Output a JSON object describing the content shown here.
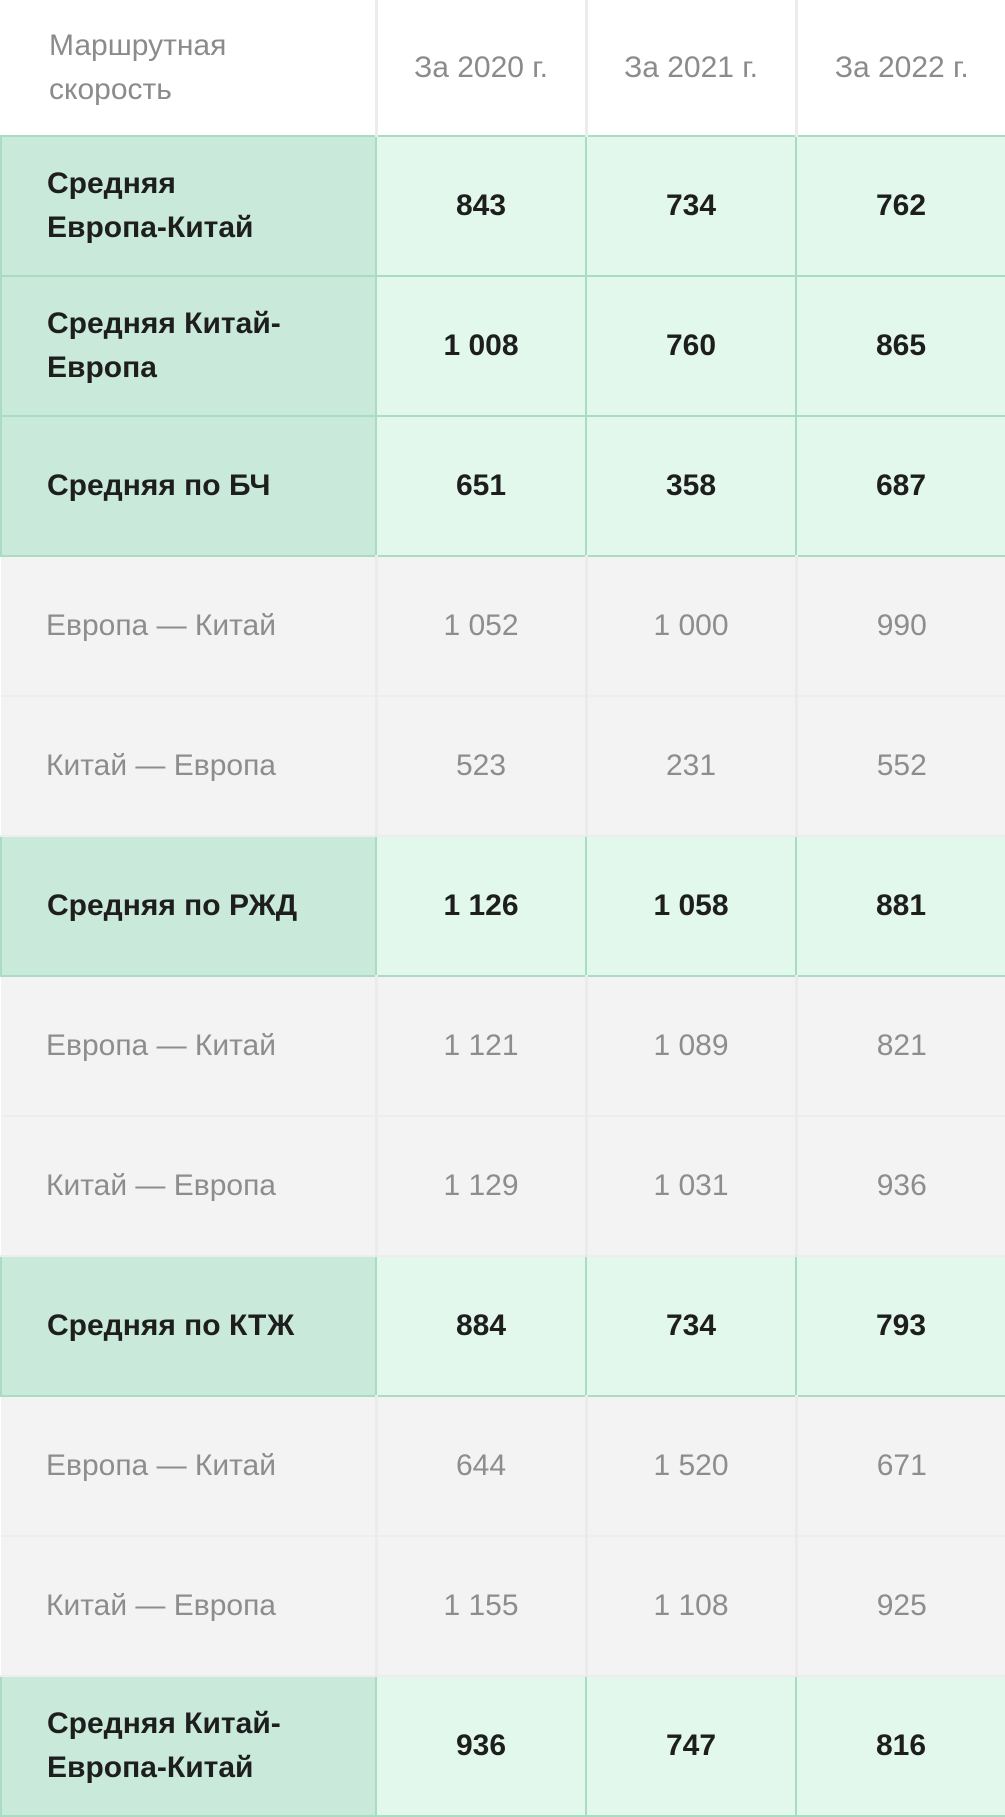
{
  "table": {
    "header": {
      "label_line1": "Маршрутная",
      "label_line2": "скорость",
      "years": [
        "За 2020 г.",
        "За 2021 г.",
        "За 2022 г."
      ]
    },
    "rows": [
      {
        "kind": "summary",
        "label_line1": "Средняя",
        "label_line2": "Европа-Китай",
        "values": [
          "843",
          "734",
          "762"
        ]
      },
      {
        "kind": "summary",
        "label_line1": "Средняя Китай-",
        "label_line2": "Европа",
        "values": [
          "1 008",
          "760",
          "865"
        ]
      },
      {
        "kind": "summary",
        "label_line1": "Средняя по БЧ",
        "values": [
          "651",
          "358",
          "687"
        ]
      },
      {
        "kind": "detail",
        "label_line1": "Европа — Китай",
        "values": [
          "1 052",
          "1 000",
          "990"
        ]
      },
      {
        "kind": "detail",
        "label_line1": "Китай — Европа",
        "values": [
          "523",
          "231",
          "552"
        ]
      },
      {
        "kind": "summary",
        "label_line1": "Средняя по РЖД",
        "values": [
          "1 126",
          "1 058",
          "881"
        ]
      },
      {
        "kind": "detail",
        "label_line1": "Европа — Китай",
        "values": [
          "1 121",
          "1 089",
          "821"
        ]
      },
      {
        "kind": "detail",
        "label_line1": "Китай — Европа",
        "values": [
          "1 129",
          "1 031",
          "936"
        ]
      },
      {
        "kind": "summary",
        "label_line1": "Средняя по КТЖ",
        "values": [
          "884",
          "734",
          "793"
        ]
      },
      {
        "kind": "detail",
        "label_line1": "Европа — Китай",
        "values": [
          "644",
          "1 520",
          "671"
        ]
      },
      {
        "kind": "detail",
        "label_line1": "Китай — Европа",
        "values": [
          "1 155",
          "1 108",
          "925"
        ]
      },
      {
        "kind": "summary",
        "label_line1": "Средняя Китай-",
        "label_line2": "Европа-Китай",
        "values": [
          "936",
          "747",
          "816"
        ]
      }
    ]
  },
  "colors": {
    "summary_row_bg": "#e3f8ec",
    "summary_label_bg": "#c9eadb",
    "summary_border": "#a9dcc3",
    "detail_row_bg": "#f3f3f3",
    "header_text": "#8b8b8b",
    "detail_text": "#8d8d8d",
    "summary_text": "#1e1e1e"
  }
}
